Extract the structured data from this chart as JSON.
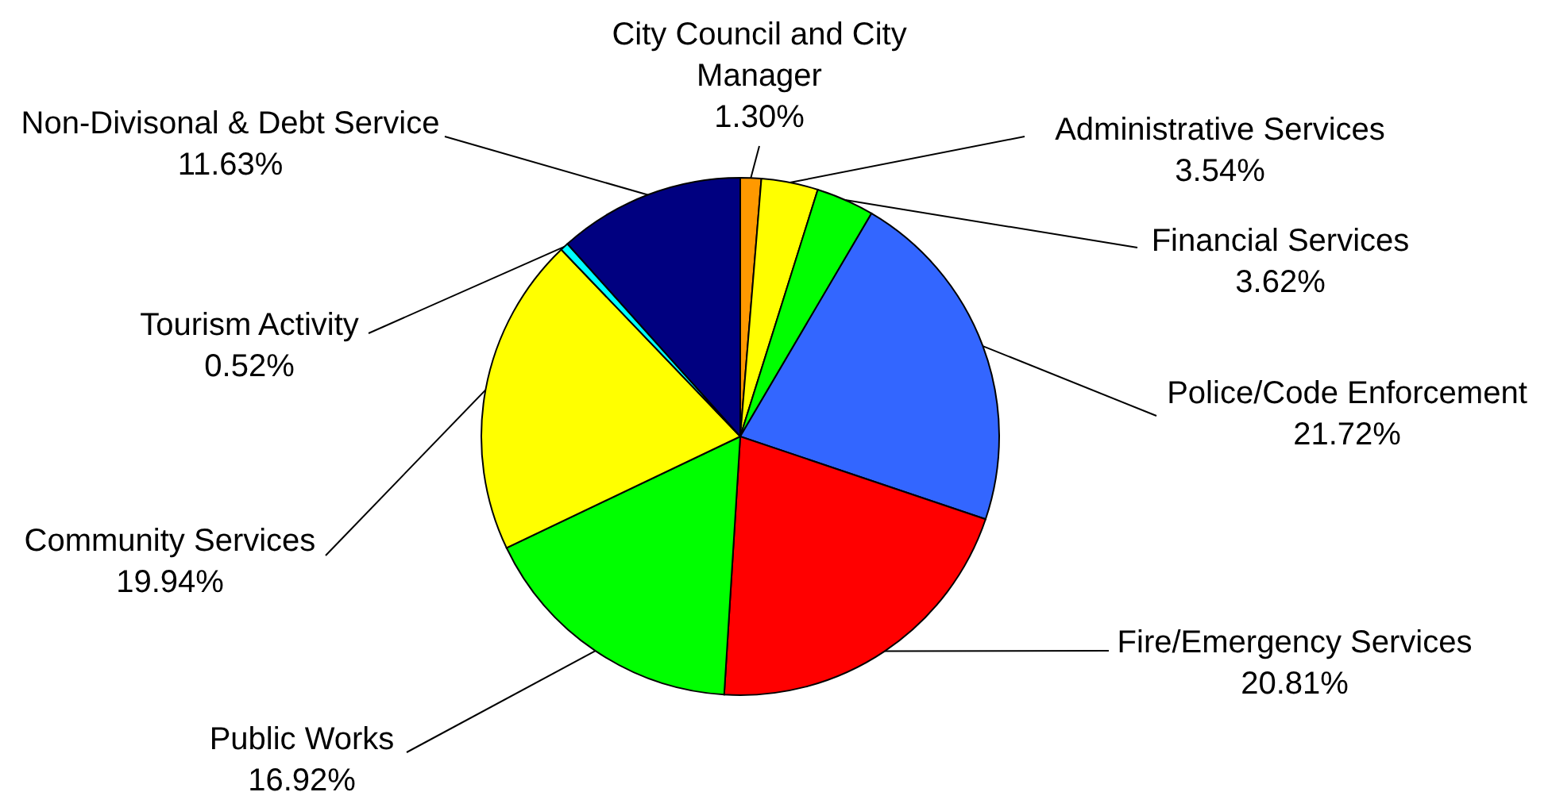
{
  "chart_data": {
    "type": "pie",
    "categories": [
      "City Council and City Manager",
      "Administrative Services",
      "Financial Services",
      "Police/Code Enforcement",
      "Fire/Emergency Services",
      "Public Works",
      "Community Services",
      "Tourism Activity",
      "Non-Divisonal & Debt Service"
    ],
    "values": [
      1.3,
      3.54,
      3.62,
      21.72,
      20.81,
      16.92,
      19.94,
      0.52,
      11.63
    ],
    "value_labels": [
      "1.30%",
      "3.54%",
      "3.62%",
      "21.72%",
      "20.81%",
      "16.92%",
      "19.94%",
      "0.52%",
      "11.63%"
    ],
    "colors": [
      "#ff9900",
      "#ffff00",
      "#00ff00",
      "#3366ff",
      "#ff0000",
      "#00ff00",
      "#ffff00",
      "#00ffff",
      "#000080"
    ]
  }
}
